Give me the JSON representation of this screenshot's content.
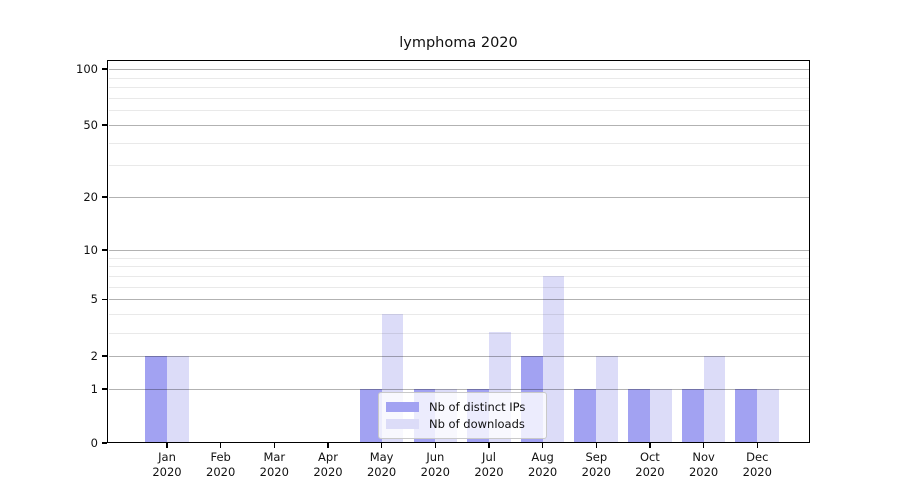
{
  "title": "lymphoma 2020",
  "legend": {
    "items": [
      {
        "label": "Nb of distinct IPs",
        "color": "#a2a2f2"
      },
      {
        "label": "Nb of downloads",
        "color": "#dcdcf8"
      }
    ]
  },
  "chart_data": {
    "type": "bar",
    "title": "lymphoma 2020",
    "categories": [
      "Jan 2020",
      "Feb 2020",
      "Mar 2020",
      "Apr 2020",
      "May 2020",
      "Jun 2020",
      "Jul 2020",
      "Aug 2020",
      "Sep 2020",
      "Oct 2020",
      "Nov 2020",
      "Dec 2020"
    ],
    "x_months": [
      "Jan",
      "Feb",
      "Mar",
      "Apr",
      "May",
      "Jun",
      "Jul",
      "Aug",
      "Sep",
      "Oct",
      "Nov",
      "Dec"
    ],
    "x_year": "2020",
    "series": [
      {
        "name": "Nb of distinct IPs",
        "color": "#a2a2f2",
        "values": [
          2,
          0,
          0,
          0,
          1,
          1,
          1,
          2,
          1,
          1,
          1,
          1
        ]
      },
      {
        "name": "Nb of downloads",
        "color": "#dcdcf8",
        "values": [
          2,
          0,
          0,
          0,
          4,
          1,
          3,
          7,
          2,
          1,
          2,
          1
        ]
      }
    ],
    "xlabel": "",
    "ylabel": "",
    "yscale": "log1p",
    "ylim": [
      0,
      112
    ],
    "y_major_ticks": [
      0,
      1,
      2,
      5,
      10,
      20,
      50,
      100
    ],
    "y_tick_labels": [
      "0",
      "1",
      "2",
      "5",
      "10",
      "20",
      "50",
      "100"
    ],
    "y_minor_gridlines": [
      3,
      4,
      6,
      7,
      8,
      9,
      30,
      40,
      60,
      70,
      80,
      90
    ],
    "grid": "horizontal",
    "grid_over_bars": true,
    "legend_position": "lower-center-inside",
    "major_grid_color": "#b8b8b8",
    "minor_grid_color": "#e9e9e9",
    "axis_color": "#000000",
    "background_color": "#ffffff"
  }
}
